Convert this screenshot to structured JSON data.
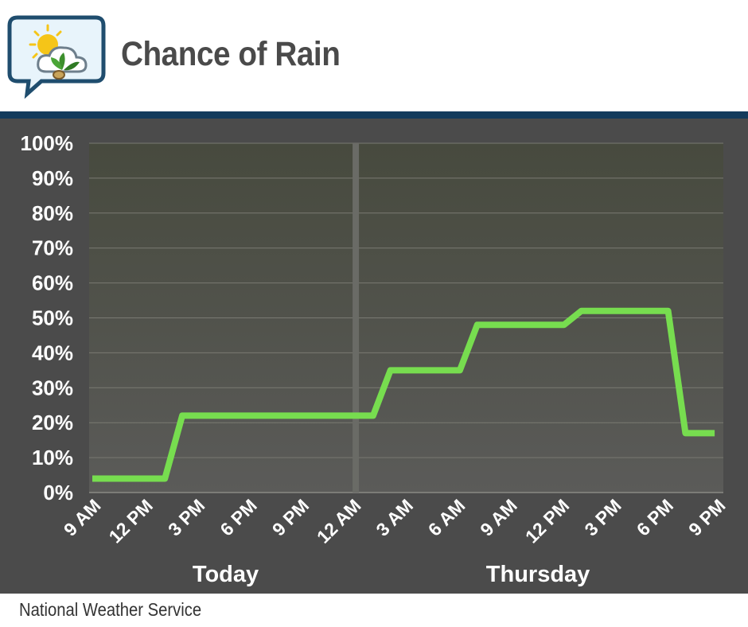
{
  "header": {
    "title": "Chance of Rain"
  },
  "footer": {
    "source": "National Weather Service"
  },
  "colors": {
    "line": "#77dd4f",
    "panel": "#4b4b4b",
    "rule": "#133b5c",
    "title": "#4a4a4a"
  },
  "icons": {
    "logo": "weather-chat-bubble-icon"
  },
  "chart_data": {
    "type": "line",
    "title": "Chance of Rain",
    "xlabel": "",
    "ylabel": "",
    "ylim": [
      0,
      100
    ],
    "yticks": [
      "0%",
      "10%",
      "20%",
      "30%",
      "40%",
      "50%",
      "60%",
      "70%",
      "80%",
      "90%",
      "100%"
    ],
    "xlim": [
      0,
      36
    ],
    "xticks": [
      {
        "x": 0,
        "label": "9 AM"
      },
      {
        "x": 3,
        "label": "12 PM"
      },
      {
        "x": 6,
        "label": "3 PM"
      },
      {
        "x": 9,
        "label": "6 PM"
      },
      {
        "x": 12,
        "label": "9 PM"
      },
      {
        "x": 15,
        "label": "12 AM"
      },
      {
        "x": 18,
        "label": "3 AM"
      },
      {
        "x": 21,
        "label": "6 AM"
      },
      {
        "x": 24,
        "label": "9 AM"
      },
      {
        "x": 27,
        "label": "12 PM"
      },
      {
        "x": 30,
        "label": "3 PM"
      },
      {
        "x": 33,
        "label": "6 PM"
      },
      {
        "x": 36,
        "label": "9 PM"
      }
    ],
    "days": [
      {
        "label": "Today",
        "x": 7.5
      },
      {
        "label": "Thursday",
        "x": 25.5
      }
    ],
    "divider_x": 15,
    "grid": true,
    "series": [
      {
        "x": [
          0,
          4,
          5,
          16,
          17,
          21,
          22,
          27,
          28,
          33,
          34,
          35.5
        ],
        "values": [
          4,
          4,
          22,
          22,
          35,
          35,
          48,
          48,
          52,
          52,
          17,
          17
        ]
      }
    ]
  }
}
